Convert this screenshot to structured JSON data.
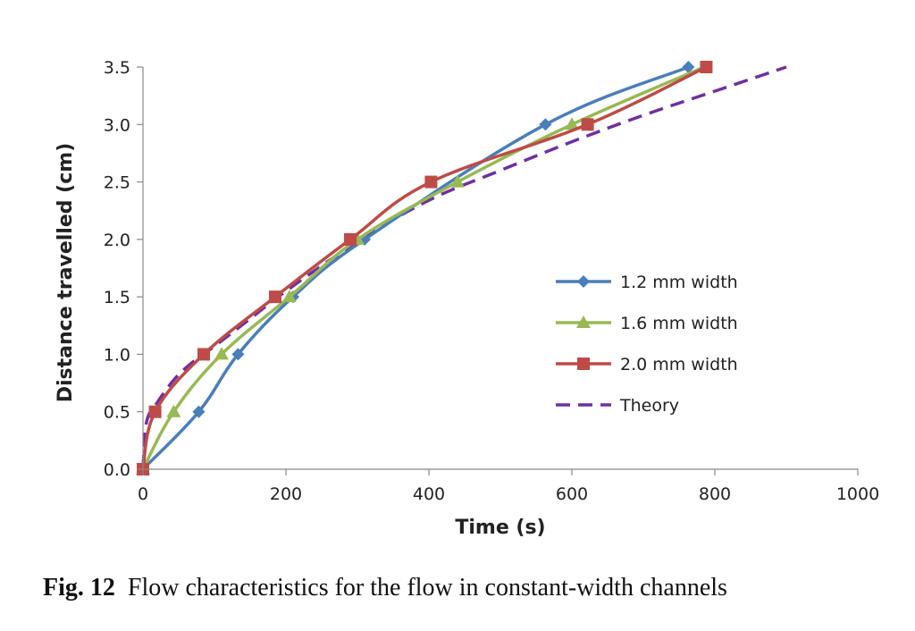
{
  "chart_data": {
    "type": "line",
    "xlabel": "Time (s)",
    "ylabel": "Distance travelled (cm)",
    "xlim": [
      0,
      1000
    ],
    "ylim": [
      0,
      3.5
    ],
    "xticks": [
      "0",
      "200",
      "400",
      "600",
      "800",
      "1000"
    ],
    "yticks": [
      "0.0",
      "0.5",
      "1.0",
      "1.5",
      "2.0",
      "2.5",
      "3.0",
      "3.5"
    ],
    "grid": false,
    "legend_position": "right",
    "series": [
      {
        "name": "1.2 mm width",
        "color": "#4a7ebb",
        "marker": "diamond",
        "dashed": false,
        "x": [
          0,
          78,
          133,
          210,
          310,
          563,
          763
        ],
        "y": [
          0,
          0.5,
          1.0,
          1.5,
          2.0,
          3.0,
          3.5
        ]
      },
      {
        "name": "1.6 mm width",
        "color": "#98b954",
        "marker": "triangle",
        "dashed": false,
        "x": [
          0,
          43,
          110,
          205,
          300,
          440,
          600,
          785
        ],
        "y": [
          0,
          0.5,
          1.0,
          1.5,
          2.0,
          2.5,
          3.0,
          3.5
        ]
      },
      {
        "name": "2.0 mm width",
        "color": "#be4b48",
        "marker": "square",
        "dashed": false,
        "x": [
          0,
          17,
          85,
          185,
          290,
          403,
          622,
          788
        ],
        "y": [
          0,
          0.5,
          1.0,
          1.5,
          2.0,
          2.5,
          3.0,
          3.5
        ]
      },
      {
        "name": "Theory",
        "color": "#7030a0",
        "marker": "none",
        "dashed": true,
        "x": [
          0,
          5,
          20,
          45,
          73,
          100,
          150,
          200,
          300,
          400,
          500,
          600,
          700,
          800,
          900
        ],
        "y": [
          0,
          0.41,
          0.58,
          0.79,
          0.95,
          1.07,
          1.31,
          1.55,
          1.98,
          2.34,
          2.6,
          2.85,
          3.08,
          3.29,
          3.5
        ]
      }
    ]
  },
  "caption": {
    "label": "Fig. 12",
    "text": "Flow characteristics for the flow in constant-width channels"
  }
}
